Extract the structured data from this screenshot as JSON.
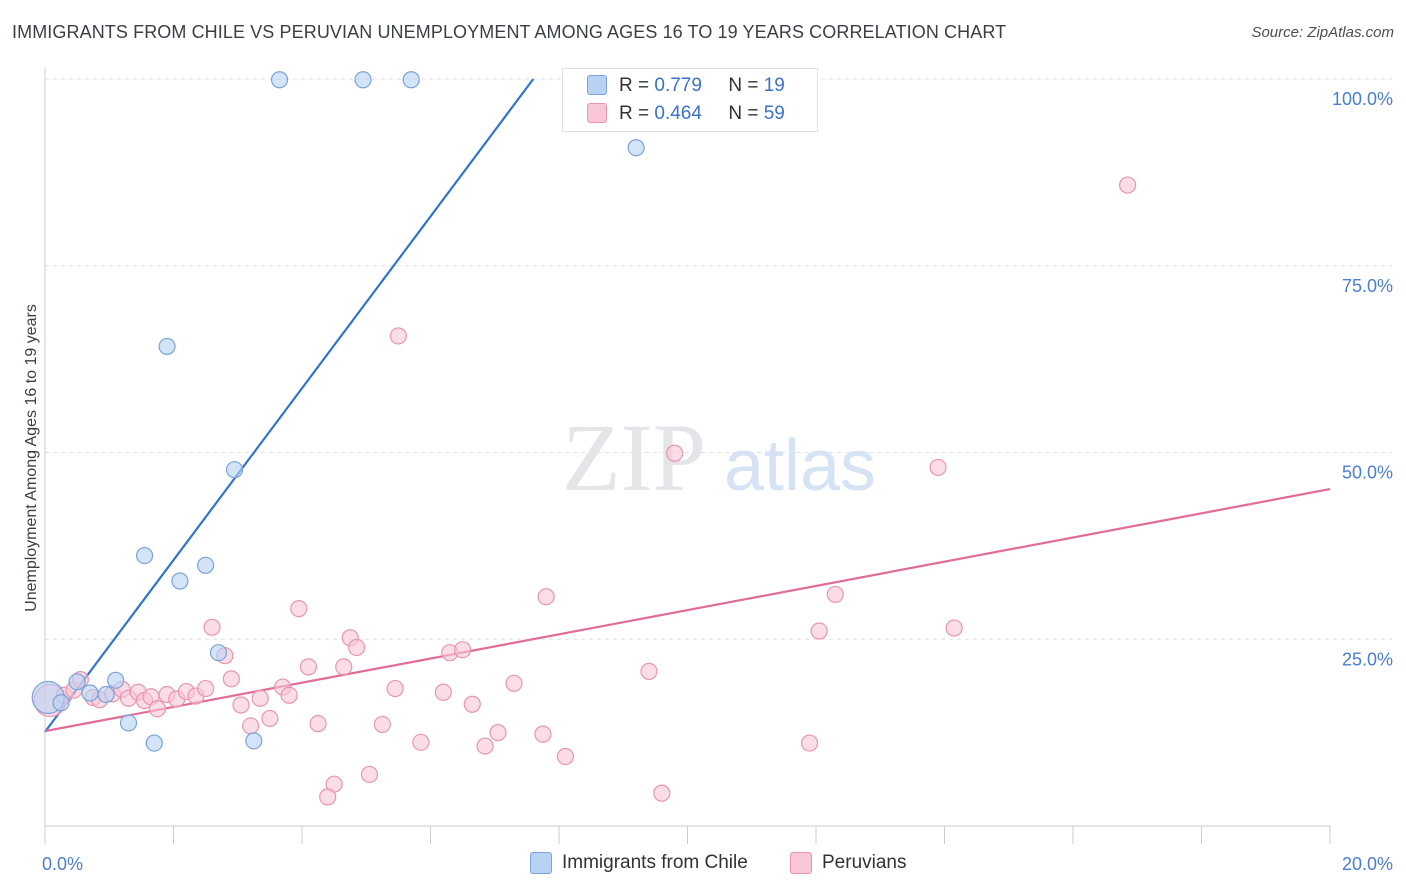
{
  "title": "IMMIGRANTS FROM CHILE VS PERUVIAN UNEMPLOYMENT AMONG AGES 16 TO 19 YEARS CORRELATION CHART",
  "source": "Source: ZipAtlas.com",
  "watermark": {
    "zip": "ZIP",
    "atlas": "atlas"
  },
  "colors": {
    "chile_fill": "#b8d2f4",
    "chile_stroke": "#7aa3d9",
    "chile_line": "#3174d0",
    "peru_fill": "#f8c6d6",
    "peru_stroke": "#e895b1",
    "peru_line": "#e36b98",
    "tick": "#4a7fd0",
    "grid": "#dde1e6"
  },
  "legend": {
    "r_label": "R =",
    "n_label": "N =",
    "chile": {
      "r": "0.779",
      "n": "19"
    },
    "peru": {
      "r": "0.464",
      "n": "59"
    }
  },
  "bottom_legend": {
    "chile": "Immigrants from Chile",
    "peru": "Peruvians"
  },
  "chart_data": {
    "type": "scatter",
    "title": "IMMIGRANTS FROM CHILE VS PERUVIAN UNEMPLOYMENT AMONG AGES 16 TO 19 YEARS CORRELATION CHART",
    "xlabel": "",
    "ylabel": "Unemployment Among Ages 16 to 19 years",
    "xlim": [
      0,
      20
    ],
    "ylim": [
      0,
      100
    ],
    "x_tick_labels": [
      "0.0%",
      "20.0%"
    ],
    "y_ticks": [
      25,
      50,
      75,
      100
    ],
    "y_tick_labels": [
      "25.0%",
      "50.0%",
      "75.0%",
      "100.0%"
    ],
    "grid": true,
    "series": [
      {
        "name": "Immigrants from Chile",
        "r": 0.779,
        "n": 19,
        "trend": {
          "x": [
            0,
            7.6
          ],
          "y": [
            12.6,
            100
          ]
        },
        "points": [
          {
            "x": 0.05,
            "y": 17.2,
            "big": true
          },
          {
            "x": 0.25,
            "y": 16.5
          },
          {
            "x": 0.5,
            "y": 19.3
          },
          {
            "x": 0.7,
            "y": 17.8
          },
          {
            "x": 1.1,
            "y": 19.5
          },
          {
            "x": 0.95,
            "y": 17.6
          },
          {
            "x": 1.3,
            "y": 13.8
          },
          {
            "x": 1.55,
            "y": 36.2
          },
          {
            "x": 1.7,
            "y": 11.1
          },
          {
            "x": 1.9,
            "y": 64.2
          },
          {
            "x": 2.1,
            "y": 32.8
          },
          {
            "x": 2.5,
            "y": 34.9
          },
          {
            "x": 2.7,
            "y": 23.2
          },
          {
            "x": 2.95,
            "y": 47.7
          },
          {
            "x": 3.25,
            "y": 11.4
          },
          {
            "x": 3.65,
            "y": 99.9
          },
          {
            "x": 4.95,
            "y": 99.9
          },
          {
            "x": 5.7,
            "y": 99.9
          },
          {
            "x": 9.2,
            "y": 90.8
          }
        ]
      },
      {
        "name": "Peruvians",
        "r": 0.464,
        "n": 59,
        "trend": {
          "x": [
            0,
            20
          ],
          "y": [
            12.7,
            45.1
          ]
        },
        "points": [
          {
            "x": 0.08,
            "y": 16.8,
            "big": true
          },
          {
            "x": 0.3,
            "y": 17.5
          },
          {
            "x": 0.45,
            "y": 18.2
          },
          {
            "x": 0.55,
            "y": 19.6
          },
          {
            "x": 0.75,
            "y": 17.2
          },
          {
            "x": 0.85,
            "y": 16.9
          },
          {
            "x": 1.05,
            "y": 17.7
          },
          {
            "x": 1.2,
            "y": 18.3
          },
          {
            "x": 1.3,
            "y": 17.1
          },
          {
            "x": 1.45,
            "y": 17.9
          },
          {
            "x": 1.55,
            "y": 16.8
          },
          {
            "x": 1.65,
            "y": 17.3
          },
          {
            "x": 1.75,
            "y": 15.7
          },
          {
            "x": 1.9,
            "y": 17.6
          },
          {
            "x": 2.05,
            "y": 17.0
          },
          {
            "x": 2.2,
            "y": 18.0
          },
          {
            "x": 2.35,
            "y": 17.4
          },
          {
            "x": 2.5,
            "y": 18.4
          },
          {
            "x": 2.6,
            "y": 26.6
          },
          {
            "x": 2.8,
            "y": 22.8
          },
          {
            "x": 2.9,
            "y": 19.7
          },
          {
            "x": 3.05,
            "y": 16.2
          },
          {
            "x": 3.2,
            "y": 13.4
          },
          {
            "x": 3.35,
            "y": 17.1
          },
          {
            "x": 3.5,
            "y": 14.4
          },
          {
            "x": 3.7,
            "y": 18.6
          },
          {
            "x": 3.8,
            "y": 17.5
          },
          {
            "x": 3.95,
            "y": 29.1
          },
          {
            "x": 4.1,
            "y": 21.3
          },
          {
            "x": 4.25,
            "y": 13.7
          },
          {
            "x": 4.5,
            "y": 5.6
          },
          {
            "x": 4.4,
            "y": 3.9
          },
          {
            "x": 4.65,
            "y": 21.3
          },
          {
            "x": 4.75,
            "y": 25.2
          },
          {
            "x": 4.85,
            "y": 23.9
          },
          {
            "x": 5.05,
            "y": 6.9
          },
          {
            "x": 5.25,
            "y": 13.6
          },
          {
            "x": 5.45,
            "y": 18.4
          },
          {
            "x": 5.5,
            "y": 65.6
          },
          {
            "x": 5.85,
            "y": 11.2
          },
          {
            "x": 6.2,
            "y": 17.9
          },
          {
            "x": 6.3,
            "y": 23.2
          },
          {
            "x": 6.5,
            "y": 23.6
          },
          {
            "x": 6.65,
            "y": 16.3
          },
          {
            "x": 6.85,
            "y": 10.7
          },
          {
            "x": 7.05,
            "y": 12.5
          },
          {
            "x": 7.3,
            "y": 19.1
          },
          {
            "x": 7.75,
            "y": 12.3
          },
          {
            "x": 7.8,
            "y": 30.7
          },
          {
            "x": 8.1,
            "y": 9.3
          },
          {
            "x": 9.4,
            "y": 20.7
          },
          {
            "x": 9.6,
            "y": 4.4
          },
          {
            "x": 9.8,
            "y": 49.9
          },
          {
            "x": 11.9,
            "y": 11.1
          },
          {
            "x": 12.05,
            "y": 26.1
          },
          {
            "x": 12.3,
            "y": 31.0
          },
          {
            "x": 13.9,
            "y": 48.0
          },
          {
            "x": 14.15,
            "y": 26.5
          },
          {
            "x": 16.85,
            "y": 85.8
          }
        ]
      }
    ]
  }
}
